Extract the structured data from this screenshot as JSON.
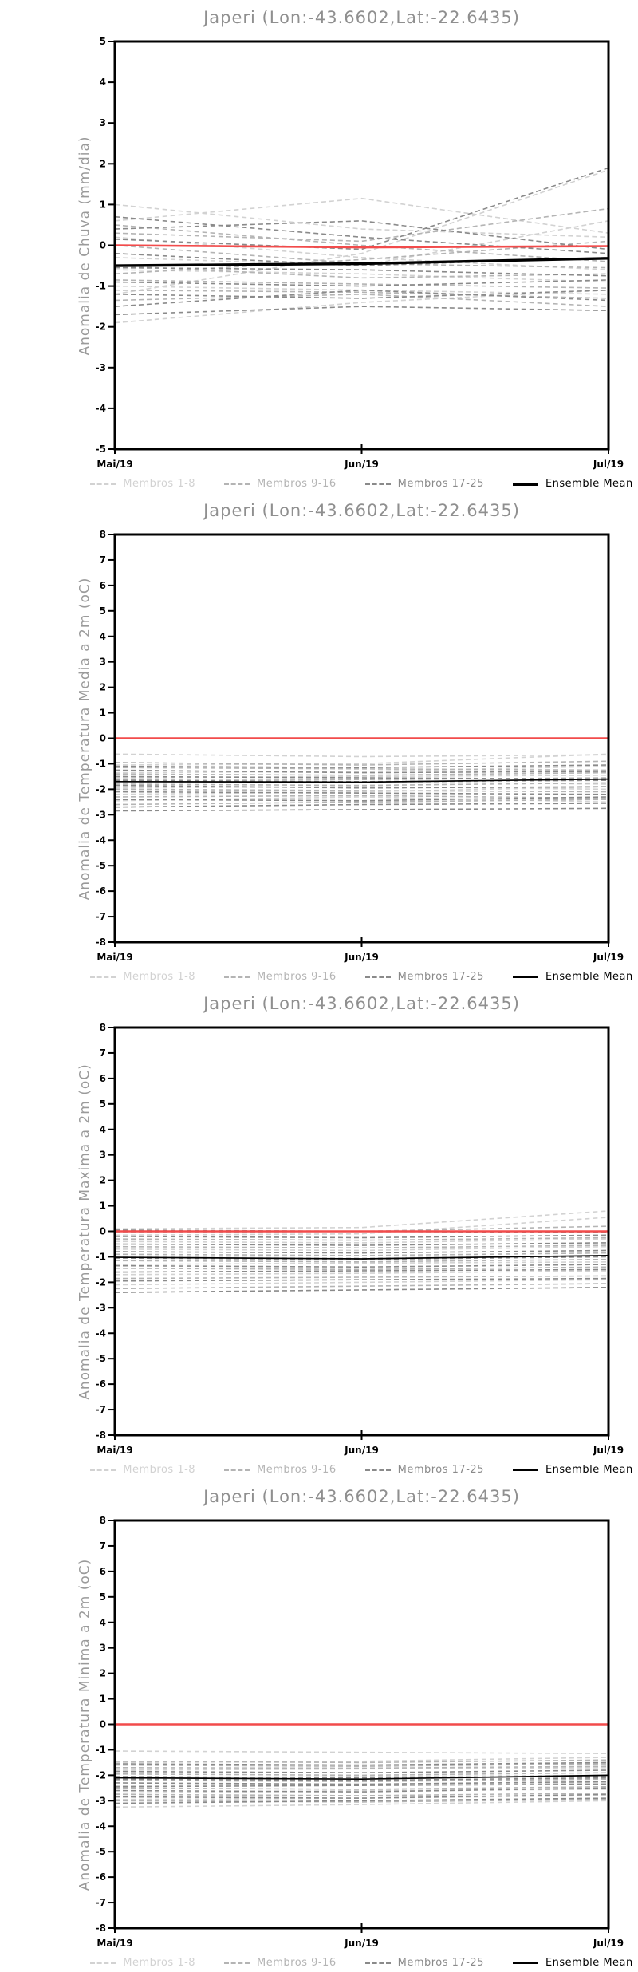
{
  "station": {
    "name": "Japeri",
    "lon": "-43.6602",
    "lat": "-22.6435"
  },
  "legend": {
    "items": [
      {
        "label": "Membros 1-8",
        "color": "#d2d2d2",
        "style": "dashed"
      },
      {
        "label": "Membros 9-16",
        "color": "#b4b4b4",
        "style": "dashed"
      },
      {
        "label": "Membros 17-25",
        "color": "#8a8a8a",
        "style": "dashed"
      },
      {
        "label": "Ensemble Mean",
        "color": "#000000",
        "style": "solid"
      }
    ]
  },
  "colors": {
    "zero_line_red": "#f24b4b",
    "axis_black": "#000000",
    "title_gray": "#8f8f8f"
  },
  "chart_data": [
    {
      "type": "line",
      "title": "Japeri (Lon:-43.6602,Lat:-22.6435)",
      "ylabel": "Anomalia de Chuva (mm/dia)",
      "ylim": [
        -5,
        5
      ],
      "ytick_step": 1,
      "x_labels": [
        "Mai/19",
        "Jun/19",
        "Jul/19"
      ],
      "grid": false,
      "zero_line": {
        "values": [
          0,
          -0.05,
          -0.02
        ]
      },
      "ensemble_mean": {
        "thick": true,
        "values": [
          -0.5,
          -0.45,
          -0.32
        ]
      },
      "groups": [
        {
          "name": "Membros 1-8",
          "color": "#d2d2d2",
          "members": [
            [
              1.0,
              0.4,
              0.2
            ],
            [
              0.6,
              1.15,
              0.3
            ],
            [
              -1.2,
              -0.2,
              1.85
            ],
            [
              0.2,
              -0.3,
              -0.6
            ],
            [
              -0.6,
              -0.7,
              -0.9
            ],
            [
              -1.0,
              -1.1,
              -1.2
            ],
            [
              -0.3,
              -0.5,
              0.6
            ],
            [
              -1.9,
              -1.4,
              -1.1
            ]
          ]
        },
        {
          "name": "Membros 9-16",
          "color": "#b4b4b4",
          "members": [
            [
              0.5,
              0.0,
              -0.4
            ],
            [
              0.0,
              -0.45,
              -0.55
            ],
            [
              -0.5,
              -0.8,
              -0.7
            ],
            [
              -0.85,
              -0.95,
              -1.05
            ],
            [
              -1.1,
              -1.15,
              -1.3
            ],
            [
              -1.35,
              -1.2,
              -1.5
            ],
            [
              0.3,
              0.1,
              0.9
            ],
            [
              -0.7,
              -0.35,
              0.1
            ]
          ]
        },
        {
          "name": "Membros 17-25",
          "color": "#8a8a8a",
          "members": [
            [
              0.7,
              0.2,
              -0.2
            ],
            [
              0.15,
              -0.1,
              1.9
            ],
            [
              -0.2,
              -0.5,
              -0.3
            ],
            [
              -0.55,
              -0.6,
              -0.75
            ],
            [
              -0.9,
              -1.0,
              -0.85
            ],
            [
              -1.2,
              -1.3,
              -1.1
            ],
            [
              -1.5,
              -1.1,
              -1.35
            ],
            [
              -1.7,
              -1.5,
              -1.6
            ],
            [
              0.4,
              0.6,
              -0.1
            ]
          ]
        }
      ]
    },
    {
      "type": "line",
      "title": "Japeri (Lon:-43.6602,Lat:-22.6435)",
      "ylabel": "Anomalia de Temperatura Media a 2m (oC)",
      "ylim": [
        -8,
        8
      ],
      "ytick_step": 1,
      "x_labels": [
        "Mai/19",
        "Jun/19",
        "Jul/19"
      ],
      "grid": false,
      "zero_line": {
        "values": [
          0,
          0,
          0
        ]
      },
      "ensemble_mean": {
        "thick": false,
        "values": [
          -1.7,
          -1.72,
          -1.6
        ]
      },
      "groups": [
        {
          "name": "Membros 1-8",
          "color": "#d2d2d2",
          "members": [
            [
              -0.62,
              -0.72,
              -0.65
            ],
            [
              -1.05,
              -1.0,
              -0.62
            ],
            [
              -1.35,
              -1.3,
              -1.1
            ],
            [
              -1.55,
              -1.5,
              -1.45
            ],
            [
              -1.75,
              -1.7,
              -1.8
            ],
            [
              -1.95,
              -1.9,
              -2.0
            ],
            [
              -2.2,
              -2.1,
              -1.9
            ],
            [
              -2.45,
              -2.3,
              -2.5
            ]
          ]
        },
        {
          "name": "Membros 9-16",
          "color": "#b4b4b4",
          "members": [
            [
              -0.95,
              -1.05,
              -0.9
            ],
            [
              -1.15,
              -1.2,
              -1.25
            ],
            [
              -1.4,
              -1.45,
              -1.35
            ],
            [
              -1.6,
              -1.62,
              -1.55
            ],
            [
              -1.8,
              -1.85,
              -1.75
            ],
            [
              -2.0,
              -2.05,
              -2.1
            ],
            [
              -2.3,
              -2.25,
              -2.35
            ],
            [
              -2.6,
              -2.5,
              -2.4
            ]
          ]
        },
        {
          "name": "Membros 17-25",
          "color": "#8a8a8a",
          "members": [
            [
              -1.1,
              -1.15,
              -1.05
            ],
            [
              -1.25,
              -1.35,
              -1.3
            ],
            [
              -1.5,
              -1.55,
              -1.6
            ],
            [
              -1.65,
              -1.7,
              -1.65
            ],
            [
              -1.85,
              -1.95,
              -1.9
            ],
            [
              -2.1,
              -2.15,
              -2.2
            ],
            [
              -2.4,
              -2.45,
              -2.3
            ],
            [
              -2.7,
              -2.6,
              -2.55
            ],
            [
              -2.85,
              -2.8,
              -2.75
            ]
          ]
        }
      ]
    },
    {
      "type": "line",
      "title": "Japeri (Lon:-43.6602,Lat:-22.6435)",
      "ylabel": "Anomalia de Temperatura Maxima a 2m (oC)",
      "ylim": [
        -8,
        8
      ],
      "ytick_step": 1,
      "x_labels": [
        "Mai/19",
        "Jun/19",
        "Jul/19"
      ],
      "grid": false,
      "zero_line": {
        "values": [
          0,
          0,
          0
        ]
      },
      "ensemble_mean": {
        "thick": false,
        "values": [
          -1.02,
          -1.08,
          -0.95
        ]
      },
      "groups": [
        {
          "name": "Membros 1-8",
          "color": "#d2d2d2",
          "members": [
            [
              0.1,
              0.15,
              0.8
            ],
            [
              -0.15,
              -0.1,
              0.55
            ],
            [
              -0.4,
              -0.45,
              -0.3
            ],
            [
              -0.7,
              -0.75,
              -0.6
            ],
            [
              -1.0,
              -1.05,
              -0.95
            ],
            [
              -1.3,
              -1.25,
              -1.2
            ],
            [
              -1.7,
              -1.65,
              -1.55
            ],
            [
              -2.1,
              -2.0,
              -1.9
            ]
          ]
        },
        {
          "name": "Membros 9-16",
          "color": "#b4b4b4",
          "members": [
            [
              -0.05,
              0.0,
              0.2
            ],
            [
              -0.3,
              -0.35,
              -0.25
            ],
            [
              -0.6,
              -0.65,
              -0.55
            ],
            [
              -0.9,
              -0.95,
              -0.85
            ],
            [
              -1.15,
              -1.2,
              -1.1
            ],
            [
              -1.45,
              -1.5,
              -1.4
            ],
            [
              -1.85,
              -1.8,
              -1.75
            ],
            [
              -2.25,
              -2.15,
              -2.05
            ]
          ]
        },
        {
          "name": "Membros 17-25",
          "color": "#8a8a8a",
          "members": [
            [
              0.05,
              0.0,
              -0.05
            ],
            [
              -0.2,
              -0.25,
              -0.15
            ],
            [
              -0.5,
              -0.55,
              -0.45
            ],
            [
              -0.8,
              -0.85,
              -0.75
            ],
            [
              -1.05,
              -1.1,
              -1.0
            ],
            [
              -1.35,
              -1.4,
              -1.3
            ],
            [
              -1.6,
              -1.55,
              -1.5
            ],
            [
              -1.95,
              -1.9,
              -1.85
            ],
            [
              -2.4,
              -2.3,
              -2.2
            ]
          ]
        }
      ]
    },
    {
      "type": "line",
      "title": "Japeri (Lon:-43.6602,Lat:-22.6435)",
      "ylabel": "Anomalia de Temperatura Minima a 2m (oC)",
      "ylim": [
        -8,
        8
      ],
      "ytick_step": 1,
      "x_labels": [
        "Mai/19",
        "Jun/19",
        "Jul/19"
      ],
      "grid": false,
      "zero_line": {
        "values": [
          0,
          0,
          0
        ]
      },
      "ensemble_mean": {
        "thick": false,
        "values": [
          -2.1,
          -2.15,
          -2.0
        ]
      },
      "groups": [
        {
          "name": "Membros 1-8",
          "color": "#d2d2d2",
          "members": [
            [
              -1.05,
              -1.1,
              -1.15
            ],
            [
              -1.5,
              -1.45,
              -1.3
            ],
            [
              -1.8,
              -1.75,
              -1.7
            ],
            [
              -2.1,
              -2.05,
              -2.0
            ],
            [
              -2.4,
              -2.35,
              -2.3
            ],
            [
              -2.7,
              -2.6,
              -2.55
            ],
            [
              -2.95,
              -2.9,
              -2.8
            ],
            [
              -3.25,
              -3.15,
              -3.0
            ]
          ]
        },
        {
          "name": "Membros 9-16",
          "color": "#b4b4b4",
          "members": [
            [
              -1.45,
              -1.5,
              -1.4
            ],
            [
              -1.7,
              -1.72,
              -1.65
            ],
            [
              -1.95,
              -2.0,
              -1.9
            ],
            [
              -2.2,
              -2.25,
              -2.15
            ],
            [
              -2.5,
              -2.55,
              -2.45
            ],
            [
              -2.75,
              -2.8,
              -2.7
            ],
            [
              -3.0,
              -3.05,
              -2.95
            ],
            [
              -1.6,
              -1.65,
              -1.55
            ]
          ]
        },
        {
          "name": "Membros 17-25",
          "color": "#8a8a8a",
          "members": [
            [
              -1.55,
              -1.6,
              -1.5
            ],
            [
              -1.85,
              -1.9,
              -1.8
            ],
            [
              -2.05,
              -2.1,
              -2.05
            ],
            [
              -2.3,
              -2.35,
              -2.25
            ],
            [
              -2.6,
              -2.65,
              -2.5
            ],
            [
              -2.85,
              -2.9,
              -2.75
            ],
            [
              -3.1,
              -3.0,
              -2.9
            ],
            [
              -2.15,
              -2.2,
              -2.1
            ],
            [
              -2.45,
              -2.4,
              -2.35
            ]
          ]
        }
      ]
    }
  ]
}
